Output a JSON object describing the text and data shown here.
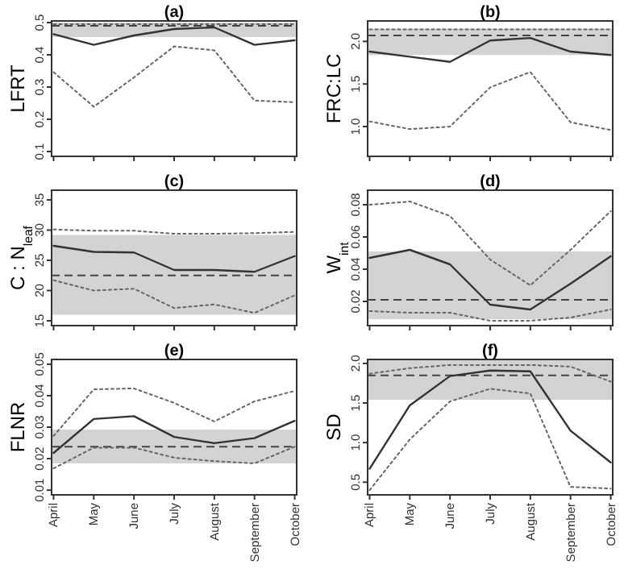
{
  "chart_data": [
    {
      "type": "line",
      "title": "(a)",
      "ylabel": "LFRT",
      "categories": [
        null,
        null,
        null,
        null,
        null,
        null,
        null
      ],
      "ylim": [
        0.085,
        0.505
      ],
      "yticks": [
        0.1,
        0.2,
        0.3,
        0.4,
        0.5
      ],
      "series": [
        {
          "color": "#333333",
          "line_style": "solid",
          "values": [
            0.464,
            0.431,
            0.46,
            0.48,
            0.485,
            0.431,
            0.445
          ]
        },
        {
          "color": "#666666",
          "line_style": "dotted",
          "values": [
            0.495,
            0.495,
            0.495,
            0.495,
            0.495,
            0.495,
            0.495
          ]
        },
        {
          "color": "#666666",
          "line_style": "dotted",
          "values": [
            0.346,
            0.239,
            0.33,
            0.426,
            0.414,
            0.258,
            0.253
          ]
        }
      ],
      "bands": [
        {
          "axis": "y",
          "from": 0.455,
          "to": 0.5,
          "color": "#d3d3d3"
        }
      ],
      "ref_lines": [
        {
          "axis": "y",
          "value": 0.49,
          "color": "#444444",
          "line_style": "dashed"
        }
      ]
    },
    {
      "type": "line",
      "title": "(b)",
      "ylabel": "FRC:LC",
      "categories": [
        null,
        null,
        null,
        null,
        null,
        null,
        null
      ],
      "ylim": [
        0.65,
        2.24
      ],
      "yticks": [
        {
          "value": 1,
          "label": "1.0"
        },
        {
          "value": 1.5,
          "label": "1.5"
        },
        {
          "value": 2,
          "label": "2.0"
        }
      ],
      "series": [
        {
          "color": "#333333",
          "line_style": "solid",
          "values": [
            1.88,
            1.82,
            1.76,
            2.01,
            2.04,
            1.88,
            1.84
          ]
        },
        {
          "color": "#666666",
          "line_style": "dotted",
          "values": [
            2.14,
            2.14,
            2.14,
            2.14,
            2.14,
            2.14,
            2.14
          ]
        },
        {
          "color": "#666666",
          "line_style": "dotted",
          "values": [
            1.06,
            0.97,
            1.0,
            1.46,
            1.64,
            1.05,
            0.96
          ]
        }
      ],
      "bands": [
        {
          "axis": "y",
          "from": 1.84,
          "to": 2.15,
          "color": "#d3d3d3"
        }
      ],
      "ref_lines": [
        {
          "axis": "y",
          "value": 2.07,
          "color": "#444444",
          "line_style": "dashed"
        }
      ]
    },
    {
      "type": "line",
      "title": "(c)",
      "ylabel": "C : N$_{leaf}$",
      "categories": [
        null,
        null,
        null,
        null,
        null,
        null,
        null
      ],
      "ylim": [
        14.2,
        36.6
      ],
      "yticks": [
        15,
        20,
        25,
        30,
        35
      ],
      "series": [
        {
          "color": "#333333",
          "line_style": "solid",
          "values": [
            27.4,
            26.4,
            26.3,
            23.4,
            23.4,
            23.1,
            25.7
          ]
        },
        {
          "color": "#666666",
          "line_style": "dotted",
          "values": [
            30.1,
            29.9,
            29.9,
            29.4,
            29.4,
            29.5,
            29.7
          ]
        },
        {
          "color": "#666666",
          "line_style": "dotted",
          "values": [
            21.7,
            20.0,
            20.3,
            17.1,
            17.7,
            16.3,
            19.2
          ]
        }
      ],
      "bands": [
        {
          "axis": "y",
          "from": 16.0,
          "to": 29.2,
          "color": "#d3d3d3"
        }
      ],
      "ref_lines": [
        {
          "axis": "y",
          "value": 22.5,
          "color": "#444444",
          "line_style": "dashed"
        }
      ]
    },
    {
      "type": "line",
      "title": "(d)",
      "ylabel": "W$_{int}$",
      "categories": [
        null,
        null,
        null,
        null,
        null,
        null,
        null
      ],
      "ylim": [
        0.005,
        0.089
      ],
      "yticks": [
        0.02,
        0.04,
        0.06,
        0.08
      ],
      "series": [
        {
          "color": "#333333",
          "line_style": "solid",
          "values": [
            0.047,
            0.052,
            0.043,
            0.018,
            0.015,
            0.031,
            0.048
          ]
        },
        {
          "color": "#666666",
          "line_style": "dotted",
          "values": [
            0.08,
            0.082,
            0.073,
            0.046,
            0.03,
            0.052,
            0.076
          ]
        },
        {
          "color": "#666666",
          "line_style": "dotted",
          "values": [
            0.014,
            0.013,
            0.013,
            0.008,
            0.008,
            0.01,
            0.015
          ]
        }
      ],
      "bands": [
        {
          "axis": "y",
          "from": 0.009,
          "to": 0.051,
          "color": "#d3d3d3"
        }
      ],
      "ref_lines": [
        {
          "axis": "y",
          "value": 0.021,
          "color": "#444444",
          "line_style": "dashed"
        }
      ]
    },
    {
      "type": "line",
      "title": "(e)",
      "ylabel": "FLNR",
      "categories": [
        "April",
        "May",
        "June",
        "July",
        "August",
        "September",
        "October"
      ],
      "ylim": [
        0.0085,
        0.0515
      ],
      "yticks": [
        0.01,
        0.02,
        0.03,
        0.04,
        0.05
      ],
      "series": [
        {
          "color": "#333333",
          "line_style": "solid",
          "values": [
            0.0218,
            0.0326,
            0.0335,
            0.0269,
            0.0249,
            0.0265,
            0.032
          ]
        },
        {
          "color": "#666666",
          "line_style": "dotted",
          "values": [
            0.0272,
            0.042,
            0.0423,
            0.0377,
            0.0318,
            0.0382,
            0.0415
          ]
        },
        {
          "color": "#666666",
          "line_style": "dotted",
          "values": [
            0.0169,
            0.0235,
            0.0235,
            0.0203,
            0.0192,
            0.0185,
            0.0238
          ]
        }
      ],
      "bands": [
        {
          "axis": "y",
          "from": 0.0185,
          "to": 0.0292,
          "color": "#d3d3d3"
        }
      ],
      "ref_lines": [
        {
          "axis": "y",
          "value": 0.0238,
          "color": "#444444",
          "line_style": "dashed"
        }
      ]
    },
    {
      "type": "line",
      "title": "(f)",
      "ylabel": "SD",
      "categories": [
        "April",
        "May",
        "June",
        "July",
        "August",
        "September",
        "October"
      ],
      "ylim": [
        0.34,
        2.05
      ],
      "yticks": [
        0.5,
        {
          "value": 1,
          "label": "1.0"
        },
        1.5,
        {
          "value": 2,
          "label": "2.0"
        }
      ],
      "series": [
        {
          "color": "#333333",
          "line_style": "solid",
          "values": [
            0.67,
            1.47,
            1.84,
            1.91,
            1.9,
            1.15,
            0.75
          ]
        },
        {
          "color": "#666666",
          "line_style": "dotted",
          "values": [
            1.87,
            1.94,
            1.98,
            1.98,
            1.98,
            1.96,
            1.77
          ]
        },
        {
          "color": "#666666",
          "line_style": "dotted",
          "values": [
            0.4,
            1.04,
            1.52,
            1.68,
            1.62,
            0.44,
            0.42
          ]
        }
      ],
      "bands": [
        {
          "axis": "y",
          "from": 1.54,
          "to": 2.04,
          "color": "#d3d3d3"
        }
      ],
      "ref_lines": [
        {
          "axis": "y",
          "value": 1.85,
          "color": "#444444",
          "line_style": "dashed"
        }
      ]
    }
  ]
}
